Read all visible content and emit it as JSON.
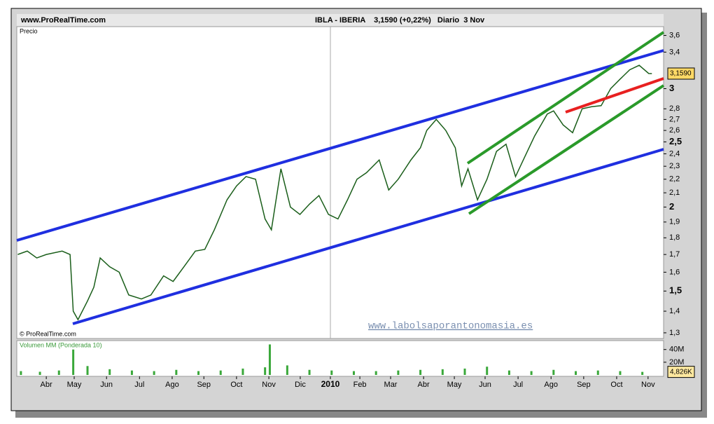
{
  "header": {
    "site": "www.ProRealTime.com",
    "title": "IBLA - IBERIA    3,1590 (+0,22%)   Diario  3 Nov",
    "copyright": "© ProRealTime.com",
    "watermark": "www.labolsaporantonomasia.es"
  },
  "chart_data": [
    {
      "type": "line",
      "title": "Precio",
      "log_scale": true,
      "xlim": [
        -0.93,
        19.47
      ],
      "ylim": [
        1.275,
        3.71
      ],
      "xticks": [
        {
          "value": 0,
          "label": "Abr"
        },
        {
          "value": 0.88,
          "label": "May"
        },
        {
          "value": 1.9,
          "label": "Jun"
        },
        {
          "value": 2.94,
          "label": "Jul"
        },
        {
          "value": 3.97,
          "label": "Ago"
        },
        {
          "value": 4.97,
          "label": "Sep"
        },
        {
          "value": 6.0,
          "label": "Oct"
        },
        {
          "value": 7.02,
          "label": "Nov"
        },
        {
          "value": 8.01,
          "label": "Dic"
        },
        {
          "value": 8.96,
          "label": "2010"
        },
        {
          "value": 9.89,
          "label": "Feb"
        },
        {
          "value": 10.86,
          "label": "Mar"
        },
        {
          "value": 11.9,
          "label": "Abr"
        },
        {
          "value": 12.87,
          "label": "May"
        },
        {
          "value": 13.84,
          "label": "Jun"
        },
        {
          "value": 14.88,
          "label": "Jul"
        },
        {
          "value": 15.92,
          "label": "Ago"
        },
        {
          "value": 16.95,
          "label": "Sep"
        },
        {
          "value": 17.99,
          "label": "Oct"
        },
        {
          "value": 18.98,
          "label": "Nov"
        }
      ],
      "yticks": [
        {
          "value": 1.3,
          "label": "1,3"
        },
        {
          "value": 1.4,
          "label": "1,4"
        },
        {
          "value": 1.5,
          "label": "1,5"
        },
        {
          "value": 1.6,
          "label": "1,6"
        },
        {
          "value": 1.7,
          "label": "1,7"
        },
        {
          "value": 1.8,
          "label": "1,8"
        },
        {
          "value": 1.9,
          "label": "1,9"
        },
        2,
        {
          "value": 2.1,
          "label": "2,1"
        },
        {
          "value": 2.2,
          "label": "2,2"
        },
        {
          "value": 2.3,
          "label": "2,3"
        },
        {
          "value": 2.4,
          "label": "2,4"
        },
        {
          "value": 2.5,
          "label": "2,5"
        },
        {
          "value": 2.6,
          "label": "2,6"
        },
        {
          "value": 2.7,
          "label": "2,7"
        },
        {
          "value": 2.8,
          "label": "2,8"
        },
        3,
        {
          "value": 3.4,
          "label": "3,4"
        },
        {
          "value": 3.6,
          "label": "3,6"
        }
      ],
      "last": {
        "value": 3.159,
        "label": "3,1590"
      },
      "series": [
        {
          "name": "IBLA",
          "color": "#1a5e1a",
          "x": [
            -0.9,
            -0.6,
            -0.3,
            0,
            0.5,
            0.75,
            0.85,
            1.0,
            1.3,
            1.5,
            1.7,
            2.0,
            2.3,
            2.6,
            3.0,
            3.3,
            3.7,
            4.0,
            4.3,
            4.7,
            5.0,
            5.3,
            5.7,
            6.0,
            6.3,
            6.6,
            6.9,
            7.1,
            7.4,
            7.7,
            8.0,
            8.3,
            8.6,
            8.9,
            9.2,
            9.5,
            9.8,
            10.1,
            10.5,
            10.8,
            11.1,
            11.5,
            11.8,
            12.0,
            12.3,
            12.6,
            12.9,
            13.1,
            13.3,
            13.6,
            13.9,
            14.2,
            14.5,
            14.8,
            15.1,
            15.4,
            15.8,
            16.0,
            16.3,
            16.6,
            16.9,
            17.2,
            17.5,
            17.8,
            18.1,
            18.4,
            18.7,
            19.0,
            19.1
          ],
          "values": [
            1.7,
            1.72,
            1.68,
            1.7,
            1.72,
            1.7,
            1.4,
            1.36,
            1.45,
            1.52,
            1.68,
            1.63,
            1.6,
            1.48,
            1.46,
            1.48,
            1.58,
            1.55,
            1.62,
            1.72,
            1.73,
            1.85,
            2.05,
            2.15,
            2.22,
            2.2,
            1.92,
            1.85,
            2.28,
            2.0,
            1.95,
            2.02,
            2.08,
            1.95,
            1.92,
            2.05,
            2.2,
            2.25,
            2.35,
            2.12,
            2.2,
            2.35,
            2.45,
            2.6,
            2.7,
            2.6,
            2.45,
            2.15,
            2.28,
            2.05,
            2.2,
            2.42,
            2.48,
            2.22,
            2.38,
            2.55,
            2.75,
            2.78,
            2.65,
            2.58,
            2.8,
            2.82,
            2.83,
            3.0,
            3.1,
            3.2,
            3.25,
            3.16,
            3.159
          ]
        }
      ]
    },
    {
      "type": "bar",
      "title": "Volumen MM (Ponderada 10)",
      "xlim": [
        -0.93,
        19.47
      ],
      "ylim": [
        0,
        54
      ],
      "yticks": [
        {
          "value": 20,
          "label": "20M"
        },
        {
          "value": 40,
          "label": "40M"
        }
      ],
      "last": {
        "value": 4.826,
        "label": "4,826K"
      },
      "series": [
        {
          "name": "Volumen",
          "color": "#3aa83a",
          "x": [
            -0.8,
            -0.2,
            0.4,
            0.85,
            1.3,
            2.0,
            2.7,
            3.4,
            4.1,
            4.8,
            5.5,
            6.2,
            6.9,
            7.05,
            7.6,
            8.3,
            9.0,
            9.7,
            10.4,
            11.1,
            11.8,
            12.5,
            13.2,
            13.9,
            14.6,
            15.3,
            16.0,
            16.7,
            17.4,
            18.1,
            18.8
          ],
          "values": [
            6,
            5,
            7,
            40,
            14,
            9,
            7,
            6,
            8,
            6,
            7,
            10,
            12,
            48,
            15,
            8,
            7,
            6,
            6,
            7,
            8,
            9,
            10,
            13,
            7,
            6,
            8,
            6,
            7,
            6,
            4.826
          ]
        }
      ]
    }
  ]
}
